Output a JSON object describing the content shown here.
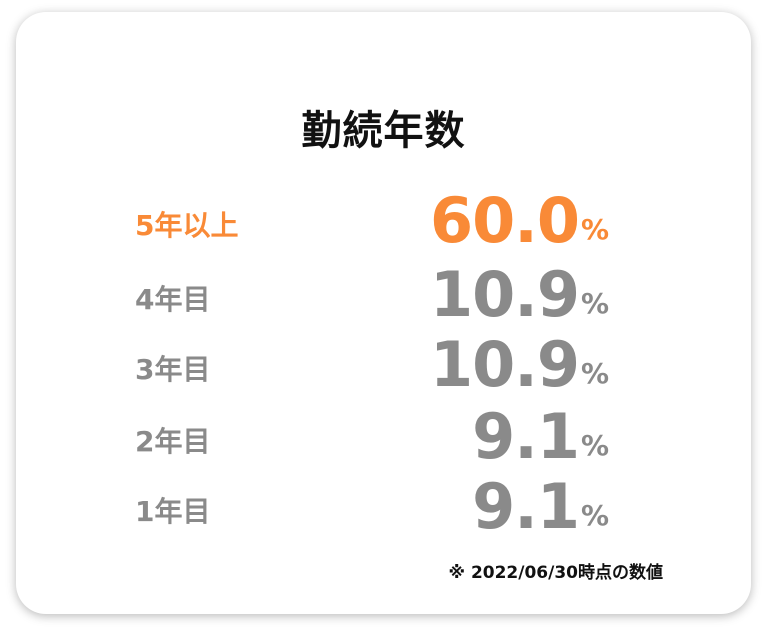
{
  "title": "勤続年数",
  "accent_color": "#f98a37",
  "text_color": "#8a8a8a",
  "rows": [
    {
      "label": "5年以上",
      "value": "60.0",
      "unit": "%",
      "highlight": true
    },
    {
      "label": "4年目",
      "value": "10.9",
      "unit": "%"
    },
    {
      "label": "3年目",
      "value": "10.9",
      "unit": "%"
    },
    {
      "label": "2年目",
      "value": "9.1",
      "unit": "%"
    },
    {
      "label": "1年目",
      "value": "9.1",
      "unit": "%"
    }
  ],
  "note": "※ 2022/06/30時点の数値"
}
